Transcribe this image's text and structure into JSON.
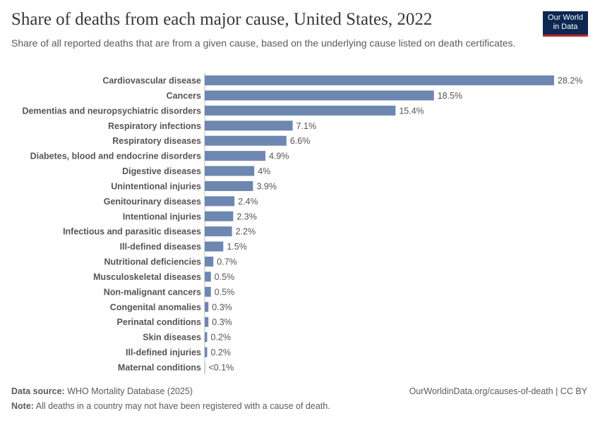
{
  "title": "Share of deaths from each major cause, United States, 2022",
  "subtitle": "Share of all reported deaths that are from a given cause, based on the underlying cause listed on death certificates.",
  "logo": "Our World in Data",
  "footer": {
    "source_label": "Data source:",
    "source": "WHO Mortality Database (2025)",
    "url": "OurWorldinData.org/causes-of-death | CC BY",
    "note_label": "Note:",
    "note": "All deaths in a country may not have been registered with a cause of death."
  },
  "chart_data": {
    "type": "bar",
    "orientation": "horizontal",
    "bar_color": "#6d87b0",
    "unit": "%",
    "categories": [
      "Cardiovascular disease",
      "Cancers",
      "Dementias and neuropsychiatric disorders",
      "Respiratory infections",
      "Respiratory diseases",
      "Diabetes, blood and endocrine disorders",
      "Digestive diseases",
      "Unintentional injuries",
      "Genitourinary diseases",
      "Intentional injuries",
      "Infectious and parasitic diseases",
      "Ill-defined diseases",
      "Nutritional deficiencies",
      "Musculoskeletal diseases",
      "Non-malignant cancers",
      "Congenital anomalies",
      "Perinatal conditions",
      "Skin diseases",
      "Ill-defined injuries",
      "Maternal conditions"
    ],
    "values": [
      28.2,
      18.5,
      15.4,
      7.1,
      6.6,
      4.9,
      4,
      3.9,
      2.4,
      2.3,
      2.2,
      1.5,
      0.7,
      0.5,
      0.5,
      0.3,
      0.3,
      0.2,
      0.2,
      0.02
    ],
    "labels": [
      "28.2%",
      "18.5%",
      "15.4%",
      "7.1%",
      "6.6%",
      "4.9%",
      "4%",
      "3.9%",
      "2.4%",
      "2.3%",
      "2.2%",
      "1.5%",
      "0.7%",
      "0.5%",
      "0.5%",
      "0.3%",
      "0.3%",
      "0.2%",
      "0.2%",
      "<0.1%"
    ]
  }
}
